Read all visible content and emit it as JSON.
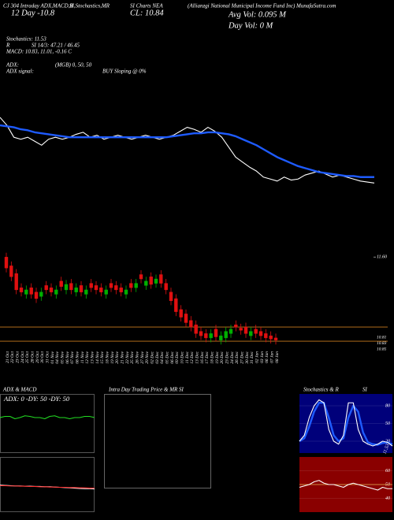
{
  "chart_data": [
    {
      "type": "line",
      "annotations": [
        "CJ 304 Intraday ADX,MACD,B",
        "SI,Stochastics,MR",
        "SI Charts NEA",
        "(Allianzgi  National  Municipal  Income  Fund Inc) MunafaSutra.com",
        "12 Day -10.8",
        "CL: 10.84",
        "Avg Vol: 0.095 M",
        "Day Vol: 0  M",
        "Stochastics: 11.53",
        "R",
        "SI 14/3: 47.21 / 46.45",
        "MACD: 10.83, 11.01, -0.16  C",
        "ADX:",
        "(MGB) 0, 50, 50",
        "ADX  signal:",
        "BUY Sloping @ 0%"
      ],
      "ylim": [
        10.7,
        11.65
      ],
      "series": [
        {
          "color": "#ffffff",
          "values": [
            11.5,
            11.42,
            11.3,
            11.28,
            11.3,
            11.26,
            11.22,
            11.28,
            11.3,
            11.28,
            11.3,
            11.33,
            11.35,
            11.3,
            11.32,
            11.28,
            11.3,
            11.32,
            11.3,
            11.28,
            11.3,
            11.32,
            11.3,
            11.28,
            11.3,
            11.32,
            11.36,
            11.4,
            11.38,
            11.35,
            11.4,
            11.36,
            11.3,
            11.2,
            11.1,
            11.05,
            11.0,
            10.96,
            10.9,
            10.88,
            10.86,
            10.9,
            10.87,
            10.88,
            10.92,
            10.94,
            10.96,
            10.93,
            10.9,
            10.92,
            10.9,
            10.88,
            10.86,
            10.85,
            10.84
          ]
        },
        {
          "color": "#1e5bff",
          "values": [
            11.42,
            11.41,
            11.4,
            11.38,
            11.37,
            11.35,
            11.34,
            11.33,
            11.32,
            11.31,
            11.3,
            11.3,
            11.3,
            11.3,
            11.3,
            11.3,
            11.3,
            11.3,
            11.3,
            11.3,
            11.3,
            11.3,
            11.3,
            11.3,
            11.3,
            11.31,
            11.32,
            11.33,
            11.34,
            11.34,
            11.35,
            11.35,
            11.34,
            11.33,
            11.31,
            11.28,
            11.25,
            11.22,
            11.18,
            11.14,
            11.1,
            11.07,
            11.04,
            11.01,
            10.99,
            10.97,
            10.95,
            10.94,
            10.93,
            10.92,
            10.91,
            10.91,
            10.9,
            10.9,
            10.9
          ]
        }
      ]
    },
    {
      "type": "candlestick",
      "categories": [
        "21 Oct",
        "22 Oct",
        "23 Oct",
        "24 Oct",
        "25 Oct",
        "28 Oct",
        "29 Oct",
        "30 Oct",
        "31 Oct",
        "01 Nov",
        "04 Nov",
        "05 Nov",
        "06 Nov",
        "07 Nov",
        "08 Nov",
        "11 Nov",
        "12 Nov",
        "13 Nov",
        "14 Nov",
        "15 Nov",
        "18 Nov",
        "19 Nov",
        "20 Nov",
        "21 Nov",
        "22 Nov",
        "25 Nov",
        "26 Nov",
        "27 Nov",
        "29 Nov",
        "02 Dec",
        "03 Dec",
        "04 Dec",
        "05 Dec",
        "06 Dec",
        "09 Dec",
        "10 Dec",
        "11 Dec",
        "12 Dec",
        "13 Dec",
        "16 Dec",
        "17 Dec",
        "18 Dec",
        "19 Dec",
        "20 Dec",
        "23 Dec",
        "24 Dec",
        "26 Dec",
        "27 Dec",
        "30 Dec",
        "31 Dec",
        "02 Jan",
        "03 Jan",
        "06 Jan",
        "07 Jan",
        "08 Jan"
      ],
      "open": [
        11.6,
        11.52,
        11.45,
        11.32,
        11.26,
        11.32,
        11.28,
        11.24,
        11.34,
        11.32,
        11.26,
        11.38,
        11.3,
        11.36,
        11.28,
        11.34,
        11.26,
        11.36,
        11.34,
        11.32,
        11.26,
        11.36,
        11.34,
        11.32,
        11.26,
        11.36,
        11.32,
        11.44,
        11.34,
        11.42,
        11.36,
        11.44,
        11.36,
        11.28,
        11.22,
        11.12,
        11.08,
        11.02,
        10.98,
        10.92,
        10.9,
        10.86,
        10.94,
        10.84,
        10.86,
        10.9,
        10.98,
        10.95,
        10.96,
        10.88,
        10.94,
        10.92,
        10.9,
        10.88,
        10.86
      ],
      "high": [
        11.64,
        11.56,
        11.49,
        11.36,
        11.34,
        11.36,
        11.32,
        11.32,
        11.38,
        11.36,
        11.34,
        11.42,
        11.39,
        11.4,
        11.36,
        11.38,
        11.34,
        11.4,
        11.38,
        11.36,
        11.34,
        11.4,
        11.38,
        11.36,
        11.34,
        11.4,
        11.4,
        11.48,
        11.42,
        11.46,
        11.44,
        11.48,
        11.4,
        11.32,
        11.26,
        11.16,
        11.12,
        11.06,
        11.02,
        10.96,
        10.94,
        10.94,
        10.98,
        10.92,
        10.96,
        10.98,
        11.02,
        10.99,
        11.0,
        10.96,
        10.98,
        10.96,
        10.94,
        10.92,
        10.9
      ],
      "low": [
        11.46,
        11.38,
        11.26,
        11.24,
        11.22,
        11.22,
        11.18,
        11.2,
        11.26,
        11.24,
        11.22,
        11.29,
        11.26,
        11.26,
        11.24,
        11.24,
        11.22,
        11.28,
        11.26,
        11.24,
        11.22,
        11.28,
        11.26,
        11.24,
        11.22,
        11.28,
        11.28,
        11.36,
        11.3,
        11.31,
        11.32,
        11.32,
        11.26,
        11.16,
        11.06,
        11.01,
        10.96,
        10.92,
        10.86,
        10.84,
        10.82,
        10.82,
        10.83,
        10.8,
        10.82,
        10.86,
        10.92,
        10.89,
        10.86,
        10.84,
        10.86,
        10.84,
        10.82,
        10.81,
        10.8
      ],
      "close": [
        11.5,
        11.42,
        11.3,
        11.28,
        11.3,
        11.26,
        11.22,
        11.28,
        11.3,
        11.28,
        11.3,
        11.33,
        11.35,
        11.3,
        11.32,
        11.28,
        11.3,
        11.32,
        11.3,
        11.28,
        11.3,
        11.32,
        11.3,
        11.28,
        11.3,
        11.32,
        11.36,
        11.4,
        11.38,
        11.35,
        11.4,
        11.36,
        11.3,
        11.2,
        11.1,
        11.05,
        11.0,
        10.96,
        10.9,
        10.88,
        10.86,
        10.9,
        10.87,
        10.88,
        10.92,
        10.94,
        10.96,
        10.93,
        10.9,
        10.92,
        10.9,
        10.88,
        10.86,
        10.85,
        10.84
      ],
      "ylim": [
        10.78,
        11.66
      ],
      "yticks": [
        {
          "value": 11.6,
          "label": "11.60"
        }
      ],
      "price_labels": [
        "10.81",
        "10.83",
        "10.85"
      ],
      "hlines": [
        10.96,
        10.83
      ],
      "hline_color": "#c87a1e",
      "up_color": "#00b000",
      "down_color": "#e01010"
    },
    {
      "type": "line",
      "title": "ADX  & MACD",
      "annotations": [
        "ADX: 0  -DY: 50  -DY: 50"
      ],
      "ylim": [
        0,
        100
      ],
      "series": [
        {
          "color": "#22dd22",
          "values": [
            60,
            62,
            62,
            58,
            60,
            63,
            62,
            60,
            60,
            58,
            62,
            63,
            60,
            60,
            58,
            60,
            60,
            62,
            62,
            60
          ]
        }
      ]
    },
    {
      "type": "line",
      "ylim": [
        -1,
        1
      ],
      "series": [
        {
          "color": "#ffffff",
          "values": [
            -0.02,
            -0.03,
            -0.04,
            -0.05,
            -0.05,
            -0.06,
            -0.06,
            -0.07,
            -0.07,
            -0.08,
            -0.08,
            -0.09,
            -0.1,
            -0.11,
            -0.12,
            -0.13,
            -0.14,
            -0.15,
            -0.15,
            -0.16
          ]
        },
        {
          "color": "#ff3030",
          "values": [
            -0.04,
            -0.04,
            -0.05,
            -0.05,
            -0.06,
            -0.06,
            -0.07,
            -0.07,
            -0.08,
            -0.08,
            -0.09,
            -0.09,
            -0.1,
            -0.1,
            -0.11,
            -0.11,
            -0.12,
            -0.12,
            -0.13,
            -0.13
          ]
        }
      ]
    },
    {
      "type": "line",
      "title": "Intra Day Trading Price  & MR SI",
      "series": []
    },
    {
      "type": "line",
      "title": "Stochastics  & R",
      "annotations": [
        "SI",
        "11.53"
      ],
      "ylim": [
        0,
        100
      ],
      "yticks": [
        80,
        50,
        20
      ],
      "series": [
        {
          "color": "#1e5bff",
          "values": [
            20,
            25,
            45,
            70,
            85,
            85,
            60,
            30,
            20,
            25,
            60,
            80,
            70,
            35,
            18,
            15,
            14,
            17,
            18,
            15
          ]
        },
        {
          "color": "#ffffff",
          "values": [
            20,
            30,
            60,
            80,
            90,
            85,
            40,
            20,
            15,
            30,
            85,
            85,
            40,
            20,
            15,
            12,
            15,
            20,
            18,
            12
          ]
        }
      ]
    },
    {
      "type": "line",
      "ylim": [
        30,
        70
      ],
      "yticks": [
        60,
        50,
        40
      ],
      "series": [
        {
          "color": "#d08a40",
          "values": [
            50,
            50,
            50,
            50,
            50,
            50,
            50,
            50,
            50,
            50,
            50,
            50,
            50,
            50,
            50,
            50,
            50,
            50,
            50,
            50
          ]
        },
        {
          "color": "#ffffff",
          "values": [
            48,
            49,
            50,
            52,
            53,
            51,
            50,
            50,
            49,
            48,
            50,
            51,
            50,
            49,
            48,
            47,
            46,
            48,
            47,
            47
          ]
        }
      ]
    }
  ]
}
